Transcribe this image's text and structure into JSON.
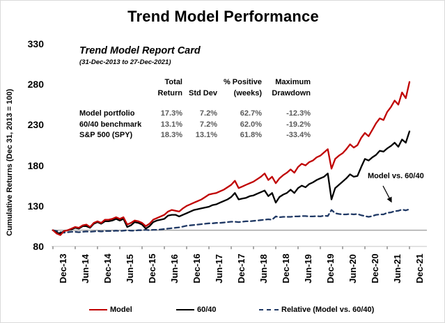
{
  "title": "Trend Model Performance",
  "report_card": {
    "title": "Trend Model Report Card",
    "subtitle": "(31-Dec-2013 to 27-Dec-2021)",
    "col_line1": [
      "Total",
      "",
      "% Positive",
      "Maximum"
    ],
    "col_line2": [
      "Return",
      "Std Dev",
      "(weeks)",
      "Drawdown"
    ],
    "rows": [
      [
        "Model portfolio",
        "17.3%",
        "7.2%",
        "62.7%",
        "-12.3%"
      ],
      [
        "60/40 benchmark",
        "13.1%",
        "7.2%",
        "62.0%",
        "-19.2%"
      ],
      [
        "S&P 500 (SPY)",
        "18.3%",
        "13.1%",
        "61.8%",
        "-33.4%"
      ]
    ]
  },
  "annotation": {
    "text": "Model vs. 60/40"
  },
  "legend": [
    {
      "label": "Model",
      "color": "#C00000",
      "dash": false
    },
    {
      "label": "60/40",
      "color": "#000000",
      "dash": false
    },
    {
      "label": "Relative (Model vs. 60/40)",
      "color": "#1F3864",
      "dash": true
    }
  ],
  "colors": {
    "model": "#C00000",
    "benchmark": "#000000",
    "relative": "#1F3864",
    "reference_line": "#808080",
    "baseline_grid": "#d9d9d9"
  },
  "chart_data": {
    "type": "line",
    "title": "Trend Model Performance",
    "xlabel": "",
    "ylabel": "Cumulative Returns (Dec 31, 2013 = 100)",
    "ylim": [
      80,
      330
    ],
    "yticks": [
      330,
      280,
      230,
      180,
      130,
      80
    ],
    "xticklabels": [
      "Dec-13",
      "Jun-14",
      "Dec-14",
      "Jun-15",
      "Dec-15",
      "Jun-16",
      "Dec-16",
      "Jun-17",
      "Dec-17",
      "Jun-18",
      "Dec-18",
      "Jun-19",
      "Dec-19",
      "Jun-20",
      "Dec-20",
      "Jun-21",
      "Dec-21"
    ],
    "x_resolution": "monthly, Dec-2013 through Dec-2021 (97 points per series)",
    "reference_line_value": 100,
    "legend_position": "bottom",
    "grid": false,
    "series": [
      {
        "name": "Model",
        "color": "#C00000",
        "style": "solid",
        "values": [
          100,
          96,
          94,
          99,
          100,
          102,
          104,
          103,
          106,
          107,
          104,
          109,
          111,
          109,
          113,
          113,
          114,
          116,
          114,
          116,
          107,
          109,
          112,
          111,
          109,
          105,
          108,
          113,
          115,
          117,
          119,
          123,
          125,
          124,
          123,
          127,
          130,
          132,
          134,
          136,
          138,
          141,
          144,
          145,
          146,
          148,
          150,
          153,
          156,
          161,
          152,
          154,
          156,
          158,
          160,
          163,
          166,
          170,
          162,
          166,
          158,
          164,
          168,
          171,
          175,
          171,
          178,
          182,
          180,
          184,
          186,
          190,
          192,
          196,
          200,
          176,
          188,
          192,
          195,
          200,
          206,
          202,
          205,
          214,
          220,
          216,
          224,
          232,
          238,
          236,
          246,
          252,
          260,
          255,
          270,
          263,
          283
        ]
      },
      {
        "name": "60/40",
        "color": "#000000",
        "style": "solid",
        "values": [
          100,
          97,
          96,
          99,
          100,
          101,
          103,
          102,
          105,
          105,
          103,
          108,
          110,
          108,
          111,
          111,
          112,
          114,
          112,
          114,
          104,
          106,
          110,
          109,
          107,
          102,
          105,
          110,
          112,
          113,
          114,
          118,
          119,
          119,
          117,
          119,
          121,
          123,
          125,
          126,
          127,
          128,
          129,
          131,
          132,
          134,
          136,
          138,
          141,
          146,
          138,
          139,
          140,
          142,
          143,
          145,
          147,
          149,
          142,
          146,
          134,
          141,
          144,
          146,
          150,
          146,
          152,
          155,
          153,
          157,
          159,
          162,
          164,
          166,
          170,
          138,
          152,
          156,
          160,
          164,
          169,
          166,
          167,
          178,
          188,
          186,
          190,
          193,
          198,
          197,
          201,
          204,
          208,
          203,
          212,
          208,
          222
        ]
      },
      {
        "name": "Relative (Model vs. 60/40)",
        "color": "#1F3864",
        "style": "dashed",
        "values": [
          100,
          99,
          97.5,
          97,
          97.5,
          98,
          98,
          97.5,
          98,
          98.5,
          98,
          98.5,
          99,
          98.5,
          99,
          99,
          99,
          99.5,
          99,
          99.5,
          100,
          99.5,
          99.5,
          100,
          100,
          100.5,
          100,
          100.5,
          100.5,
          101,
          101.5,
          102,
          102.5,
          103,
          103.5,
          104.5,
          105.5,
          106,
          106.5,
          107,
          107.5,
          108,
          108.5,
          108.5,
          109,
          109,
          109.5,
          110,
          110.5,
          110.5,
          110,
          110.5,
          111,
          111,
          111.5,
          112,
          112.5,
          113,
          113.5,
          113,
          117,
          116,
          116.5,
          116.5,
          116.5,
          117,
          117,
          117.5,
          117.5,
          117,
          117,
          117.5,
          117,
          118,
          117.5,
          125,
          121,
          120,
          119.5,
          119.5,
          120,
          119.5,
          120,
          118.5,
          117.5,
          116.5,
          117.5,
          119,
          119.5,
          119.5,
          121.5,
          122,
          123.5,
          124,
          125.5,
          124.5,
          126
        ]
      }
    ]
  }
}
